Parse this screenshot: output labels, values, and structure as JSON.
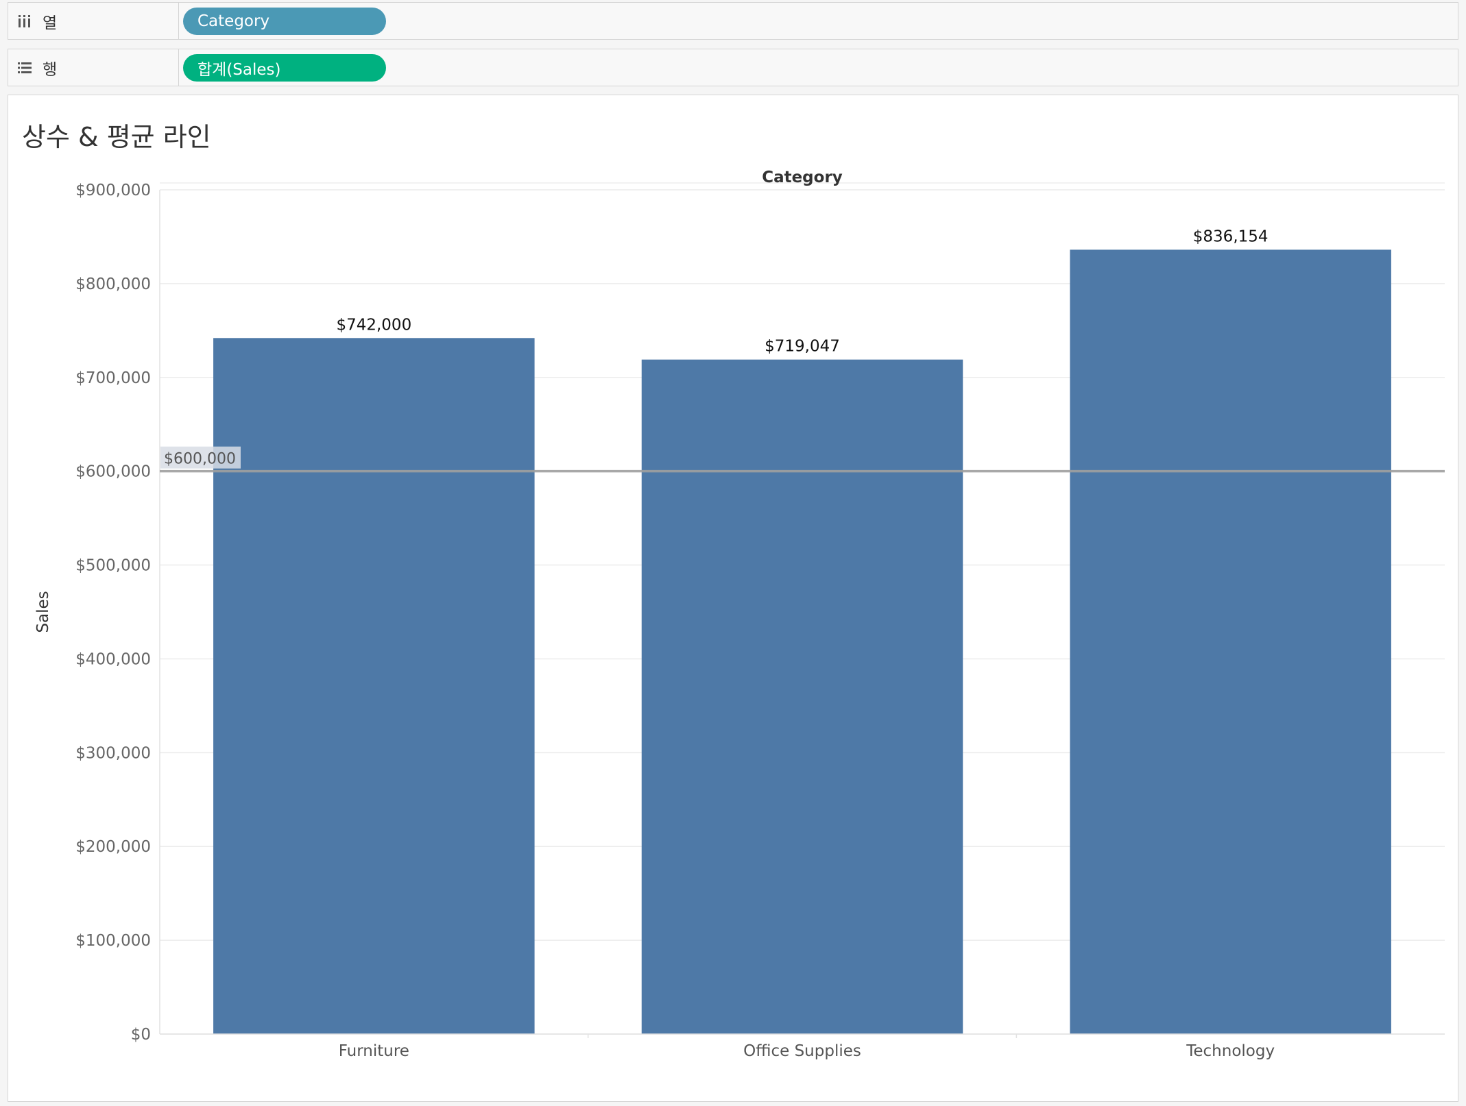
{
  "shelves": {
    "columns": {
      "label": "열",
      "icon": "columns-icon",
      "pill": "Category",
      "color": "#4b99b5"
    },
    "rows": {
      "label": "행",
      "icon": "rows-icon",
      "pill": "합계(Sales)",
      "color": "#00b180"
    }
  },
  "sheet": {
    "title": "상수 & 평균 라인"
  },
  "chart_data": {
    "type": "bar",
    "title": "상수 & 평균 라인",
    "column_header": "Category",
    "xlabel": "",
    "ylabel": "Sales",
    "categories": [
      "Furniture",
      "Office Supplies",
      "Technology"
    ],
    "values": [
      742000,
      719047,
      836154
    ],
    "value_labels": [
      "$742,000",
      "$719,047",
      "$836,154"
    ],
    "ylim": [
      0,
      900000
    ],
    "yticks": [
      0,
      100000,
      200000,
      300000,
      400000,
      500000,
      600000,
      700000,
      800000,
      900000
    ],
    "ytick_labels": [
      "$0",
      "$100,000",
      "$200,000",
      "$300,000",
      "$400,000",
      "$500,000",
      "$600,000",
      "$700,000",
      "$800,000",
      "$900,000"
    ],
    "reference_line": {
      "value": 600000,
      "label": "$600,000"
    },
    "grid": true,
    "bar_color": "#4e79a7",
    "reference_color": "#a0a0a0"
  }
}
